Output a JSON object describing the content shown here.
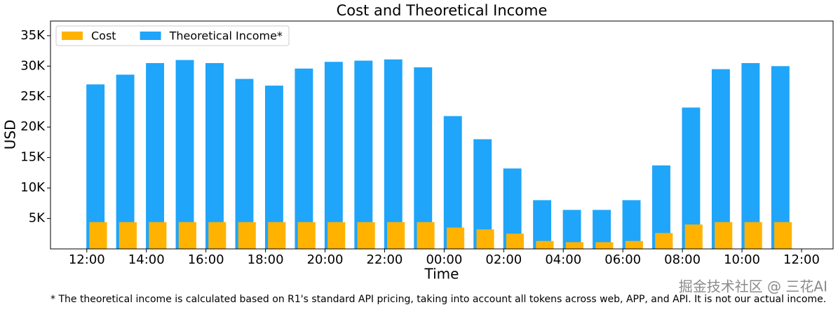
{
  "chart_data": {
    "type": "bar",
    "title": "Cost and Theoretical Income",
    "xlabel": "Time",
    "ylabel": "USD",
    "x": [
      0,
      1,
      2,
      3,
      4,
      5,
      6,
      7,
      8,
      9,
      10,
      11,
      12,
      13,
      14,
      15,
      16,
      17,
      18,
      19,
      20,
      21,
      22,
      23
    ],
    "series": [
      {
        "name": "Cost",
        "color": "#ffb300",
        "values": [
          4.4,
          4.4,
          4.4,
          4.4,
          4.4,
          4.4,
          4.4,
          4.4,
          4.4,
          4.4,
          4.4,
          4.4,
          3.5,
          3.2,
          2.5,
          1.3,
          1.1,
          1.1,
          1.3,
          2.6,
          4.0,
          4.4,
          4.4,
          4.4
        ]
      },
      {
        "name": "Theoretical Income*",
        "color": "#1fa5fa",
        "values": [
          27.0,
          28.6,
          30.5,
          31.0,
          30.5,
          27.9,
          26.8,
          29.6,
          30.7,
          30.9,
          31.1,
          29.8,
          21.8,
          18.0,
          13.2,
          8.0,
          6.4,
          6.4,
          8.0,
          13.7,
          23.2,
          29.5,
          30.5,
          30.0
        ]
      }
    ],
    "xlim": [
      -1.22,
      25.06
    ],
    "xticks": [
      {
        "value": 0,
        "label": "12:00"
      },
      {
        "value": 2,
        "label": "14:00"
      },
      {
        "value": 4,
        "label": "16:00"
      },
      {
        "value": 6,
        "label": "18:00"
      },
      {
        "value": 8,
        "label": "20:00"
      },
      {
        "value": 10,
        "label": "22:00"
      },
      {
        "value": 12,
        "label": "00:00"
      },
      {
        "value": 14,
        "label": "02:00"
      },
      {
        "value": 16,
        "label": "04:00"
      },
      {
        "value": 18,
        "label": "06:00"
      },
      {
        "value": 20,
        "label": "08:00"
      },
      {
        "value": 22,
        "label": "10:00"
      },
      {
        "value": 24,
        "label": "12:00"
      }
    ],
    "ylim": [
      0,
      37.4
    ],
    "yticks": [
      {
        "value": 5,
        "label": "5K"
      },
      {
        "value": 10,
        "label": "10K"
      },
      {
        "value": 15,
        "label": "15K"
      },
      {
        "value": 20,
        "label": "20K"
      },
      {
        "value": 25,
        "label": "25K"
      },
      {
        "value": 30,
        "label": "30K"
      },
      {
        "value": 35,
        "label": "35K"
      }
    ],
    "legend": "upper left",
    "footnote": "* The theoretical income is calculated based on R1's standard API pricing, taking into account all tokens across web, APP, and API. It is not our actual income.",
    "watermark": "掘金技术社区 @ 三花AI"
  }
}
